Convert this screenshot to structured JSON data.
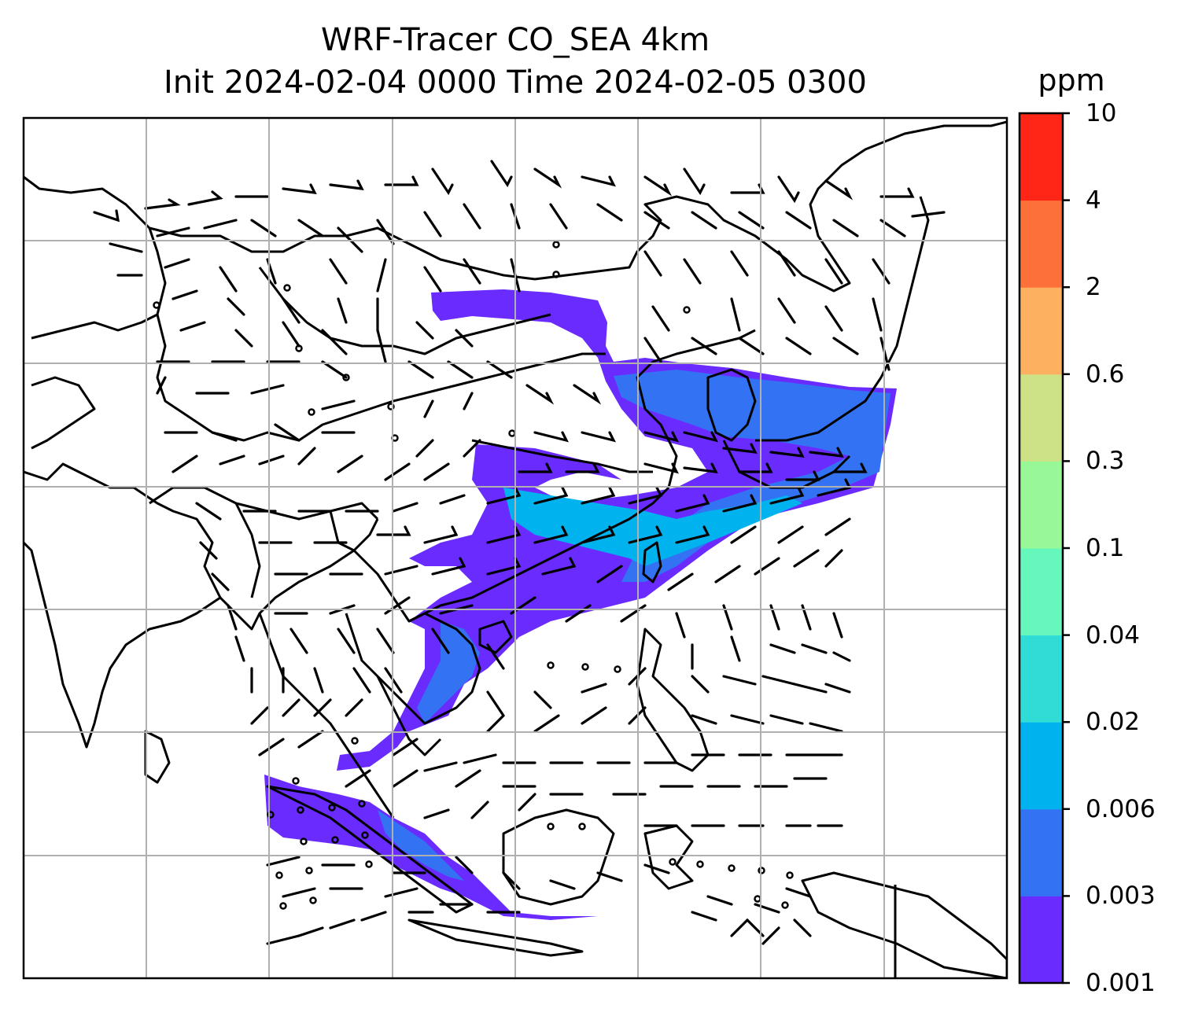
{
  "title": {
    "line1": "WRF-Tracer CO_SEA 4km",
    "line2": "Init 2024-02-04 0000 Time 2024-02-05 0300"
  },
  "colorbar": {
    "unit": "ppm",
    "levels": [
      "0.001",
      "0.003",
      "0.006",
      "0.02",
      "0.04",
      "0.1",
      "0.3",
      "0.6",
      "2",
      "4",
      "10"
    ],
    "colors": [
      "#6a2bff",
      "#3373f3",
      "#00b2ee",
      "#30dcd6",
      "#66f7bd",
      "#98f897",
      "#cde186",
      "#fcb060",
      "#fd7039",
      "#ff2617"
    ]
  },
  "map": {
    "field": "CO tracer concentration with wind barbs",
    "gridlines": true
  }
}
